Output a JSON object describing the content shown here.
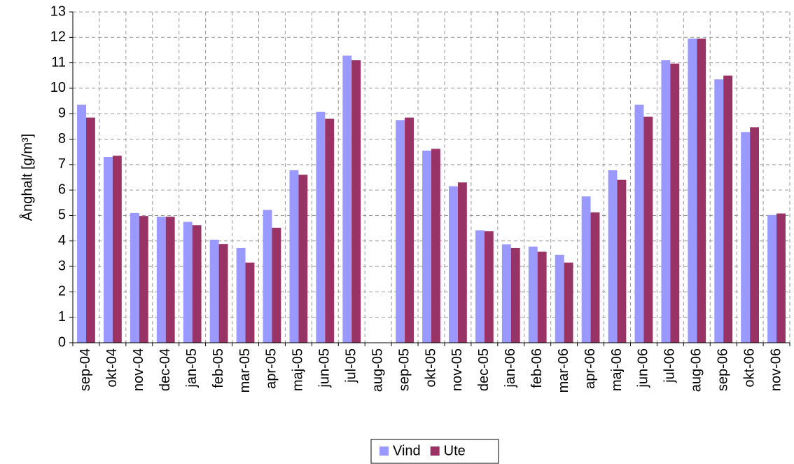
{
  "chart_data": {
    "type": "bar",
    "y_label": "Ånghalt [g/m³]",
    "categories": [
      "sep-04",
      "okt-04",
      "nov-04",
      "dec-04",
      "jan-05",
      "feb-05",
      "mar-05",
      "apr-05",
      "maj-05",
      "jun-05",
      "jul-05",
      "aug-05",
      "sep-05",
      "okt-05",
      "nov-05",
      "dec-05",
      "jan-06",
      "feb-06",
      "mar-06",
      "apr-06",
      "maj-06",
      "jun-06",
      "jul-06",
      "aug-06",
      "sep-06",
      "okt-06",
      "nov-06"
    ],
    "series": [
      {
        "name": "Vind",
        "color": "#9999ff",
        "values": [
          9.35,
          7.3,
          5.1,
          4.95,
          4.75,
          4.05,
          3.72,
          5.22,
          6.78,
          9.07,
          11.28,
          null,
          8.75,
          7.55,
          6.15,
          4.42,
          3.87,
          3.78,
          3.45,
          5.75,
          6.78,
          9.35,
          11.1,
          11.95,
          10.35,
          8.28,
          5.02
        ]
      },
      {
        "name": "Ute",
        "color": "#993366",
        "values": [
          8.85,
          7.35,
          4.98,
          4.95,
          4.62,
          3.88,
          3.15,
          4.52,
          6.6,
          8.8,
          11.1,
          null,
          8.85,
          7.62,
          6.3,
          4.38,
          3.72,
          3.58,
          3.15,
          5.12,
          6.4,
          8.88,
          10.97,
          11.95,
          10.5,
          8.47,
          5.08
        ]
      }
    ],
    "ylim": [
      0,
      13
    ],
    "yticks": [
      0,
      1,
      2,
      3,
      4,
      5,
      6,
      7,
      8,
      9,
      10,
      11,
      12,
      13
    ],
    "grid": true,
    "legend": "bottom"
  }
}
